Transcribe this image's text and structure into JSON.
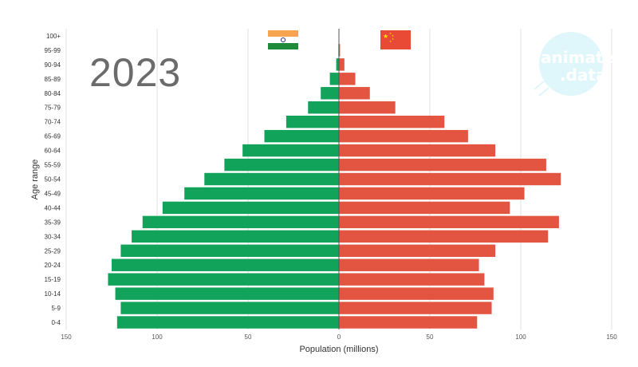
{
  "year_label": "2023",
  "watermark": {
    "line1": "animate",
    "line2": ".data"
  },
  "flags": {
    "left": "india-flag-icon",
    "right": "china-flag-icon"
  },
  "colors": {
    "left_bar": "#12a35a",
    "right_bar": "#e35441",
    "grid": "#e0e0e0",
    "axis_text": "#333333"
  },
  "chart_data": {
    "type": "bar",
    "orientation": "horizontal",
    "xlabel": "Population (millions)",
    "ylabel": "Age range",
    "xlim": [
      -150,
      150
    ],
    "xticks": [
      -150,
      -100,
      -50,
      0,
      50,
      100,
      150
    ],
    "xtick_labels": [
      "150",
      "100",
      "50",
      "0",
      "50",
      "100",
      "150"
    ],
    "grid": true,
    "categories": [
      "100+",
      "95-99",
      "90-94",
      "85-89",
      "80-84",
      "75-79",
      "70-74",
      "65-69",
      "60-64",
      "55-59",
      "50-54",
      "45-49",
      "40-44",
      "35-39",
      "30-34",
      "25-29",
      "20-24",
      "15-19",
      "10-14",
      "5-9",
      "0-4"
    ],
    "series": [
      {
        "values": [
          0.1,
          0.3,
          1.5,
          5,
          10,
          17,
          29,
          41,
          53,
          63,
          74,
          85,
          97,
          108,
          114,
          120,
          125,
          127,
          123,
          120,
          122
        ]
      },
      {
        "values": [
          0.1,
          0.6,
          3,
          9,
          17,
          31,
          58,
          71,
          86,
          114,
          122,
          102,
          94,
          121,
          115,
          86,
          77,
          80,
          85,
          84,
          76
        ]
      }
    ]
  }
}
